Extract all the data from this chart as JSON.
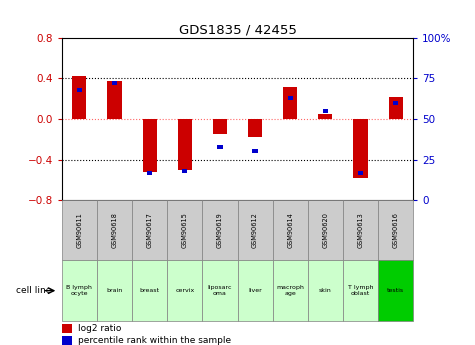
{
  "title": "GDS1835 / 42455",
  "samples": [
    "GSM90611",
    "GSM90618",
    "GSM90617",
    "GSM90615",
    "GSM90619",
    "GSM90612",
    "GSM90614",
    "GSM90620",
    "GSM90613",
    "GSM90616"
  ],
  "cell_lines": [
    "B lymph\nocyte",
    "brain",
    "breast",
    "cervix",
    "liposarc\noma",
    "liver",
    "macroph\nage",
    "skin",
    "T lymph\noblast",
    "testis"
  ],
  "cell_line_colors": [
    "#ccffcc",
    "#ccffcc",
    "#ccffcc",
    "#ccffcc",
    "#ccffcc",
    "#ccffcc",
    "#ccffcc",
    "#ccffcc",
    "#ccffcc",
    "#00cc00"
  ],
  "log2_ratio": [
    0.42,
    0.38,
    -0.52,
    -0.5,
    -0.15,
    -0.18,
    0.32,
    0.05,
    -0.58,
    0.22
  ],
  "percentile_rank": [
    68,
    72,
    17,
    18,
    33,
    30,
    63,
    55,
    17,
    60
  ],
  "ylim_left": [
    -0.8,
    0.8
  ],
  "ylim_right": [
    0,
    100
  ],
  "yticks_left": [
    -0.8,
    -0.4,
    0,
    0.4,
    0.8
  ],
  "yticks_right": [
    0,
    25,
    50,
    75,
    100
  ],
  "bar_color_red": "#cc0000",
  "bar_color_blue": "#0000cc",
  "bg_color": "#ffffff",
  "grid_color": "#000000",
  "zero_line_color": "#ff6666",
  "sample_bg": "#cccccc"
}
